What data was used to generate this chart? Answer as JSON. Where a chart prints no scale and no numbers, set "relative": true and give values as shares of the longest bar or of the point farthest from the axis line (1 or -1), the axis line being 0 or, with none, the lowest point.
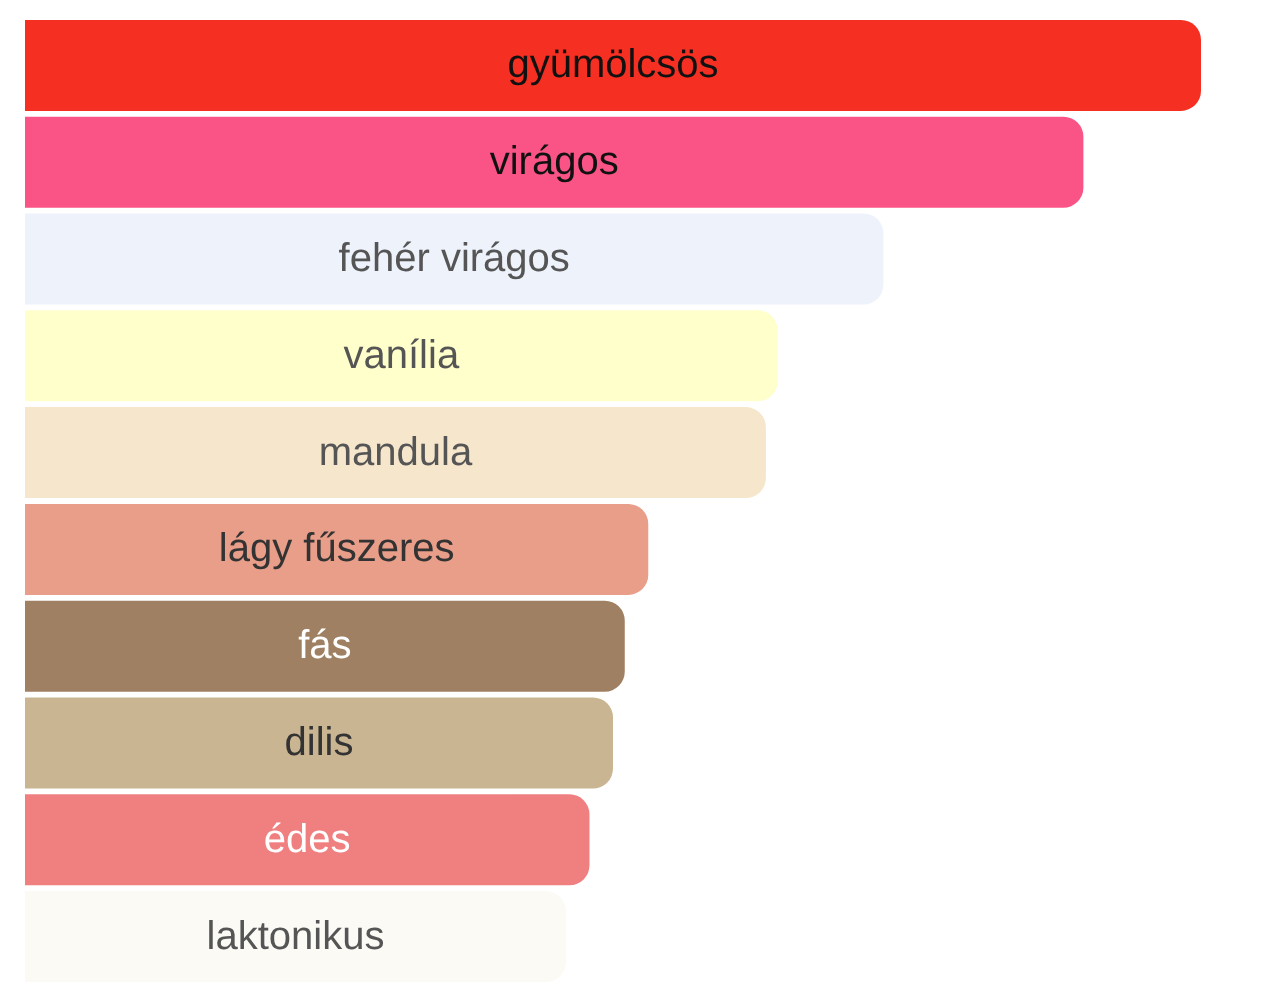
{
  "chart_data": {
    "type": "bar",
    "orientation": "horizontal",
    "relative": true,
    "categories": [
      "gyümölcsös",
      "virágos",
      "fehér virágos",
      "vanília",
      "mandula",
      "lágy fűszeres",
      "fás",
      "dilis",
      "édes",
      "laktonikus"
    ],
    "values": [
      1,
      0.9,
      0.73,
      0.64,
      0.63,
      0.53,
      0.51,
      0.5,
      0.48,
      0.46
    ],
    "colors": [
      "#f52f22",
      "#fa5486",
      "#edf2fb",
      "#ffffcc",
      "#f5e6cc",
      "#e89e88",
      "#a08063",
      "#c9b592",
      "#f07f80",
      "#fbfaf5"
    ],
    "grid": false
  }
}
